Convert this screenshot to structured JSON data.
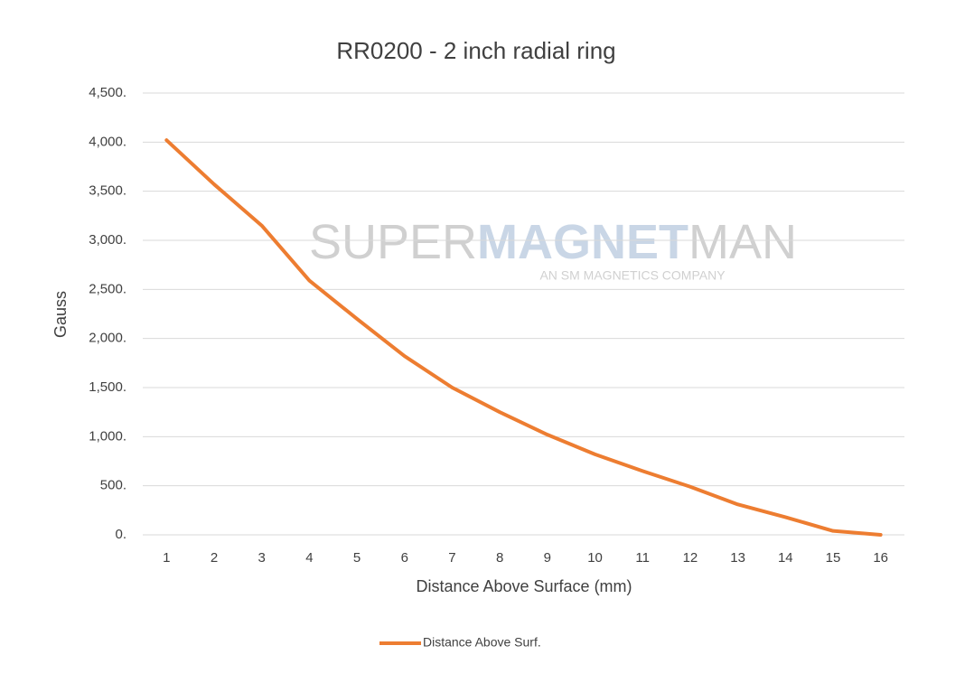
{
  "chart_data": {
    "type": "line",
    "title": "RR0200 - 2 inch radial ring",
    "x_label": "Distance Above Surface (mm)",
    "y_label": "Gauss",
    "watermark": {
      "parts": [
        "SUPER",
        "MAGNET",
        "MAN"
      ],
      "tagline": "AN SM MAGNETICS COMPANY"
    },
    "categories": [
      "1",
      "2",
      "3",
      "4",
      "5",
      "6",
      "7",
      "8",
      "9",
      "10",
      "11",
      "12",
      "13",
      "14",
      "15",
      "16"
    ],
    "series": [
      {
        "name": "Distance Above Surf.",
        "color": "#ed7d31",
        "values": [
          4020,
          3570,
          3150,
          2590,
          2200,
          1820,
          1500,
          1250,
          1020,
          820,
          650,
          490,
          310,
          180,
          40,
          0
        ]
      }
    ],
    "ylim": [
      0,
      4500
    ],
    "yticks": [
      {
        "value": 0,
        "label": "0."
      },
      {
        "value": 500,
        "label": "500."
      },
      {
        "value": 1000,
        "label": "1,000."
      },
      {
        "value": 1500,
        "label": "1,500."
      },
      {
        "value": 2000,
        "label": "2,000."
      },
      {
        "value": 2500,
        "label": "2,500."
      },
      {
        "value": 3000,
        "label": "3,000."
      },
      {
        "value": 3500,
        "label": "3,500."
      },
      {
        "value": 4000,
        "label": "4,000."
      },
      {
        "value": 4500,
        "label": "4,500."
      }
    ],
    "grid": true,
    "legend": "bottom"
  }
}
